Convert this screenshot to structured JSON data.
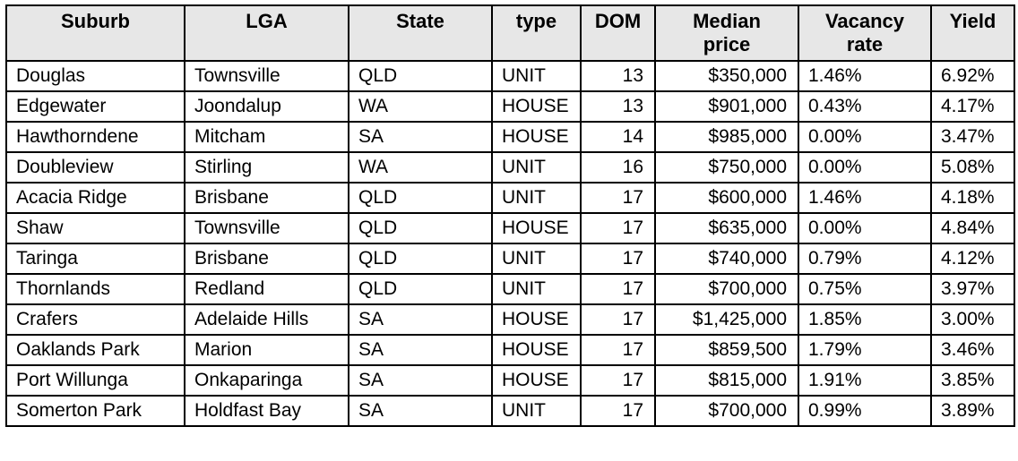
{
  "table": {
    "columns": [
      {
        "id": "suburb",
        "label": "Suburb",
        "align": "left"
      },
      {
        "id": "lga",
        "label": "LGA",
        "align": "left"
      },
      {
        "id": "state",
        "label": "State",
        "align": "left"
      },
      {
        "id": "type",
        "label": "type",
        "align": "left"
      },
      {
        "id": "dom",
        "label": "DOM",
        "align": "right"
      },
      {
        "id": "median_price",
        "label": "Median\nprice",
        "align": "right"
      },
      {
        "id": "vacancy_rate",
        "label": "Vacancy\nrate",
        "align": "left"
      },
      {
        "id": "yield",
        "label": "Yield",
        "align": "left"
      }
    ],
    "rows": [
      [
        "Douglas",
        "Townsville",
        "QLD",
        "UNIT",
        "13",
        "$350,000",
        "1.46%",
        "6.92%"
      ],
      [
        "Edgewater",
        "Joondalup",
        "WA",
        "HOUSE",
        "13",
        "$901,000",
        "0.43%",
        "4.17%"
      ],
      [
        "Hawthorndene",
        "Mitcham",
        "SA",
        "HOUSE",
        "14",
        "$985,000",
        "0.00%",
        "3.47%"
      ],
      [
        "Doubleview",
        "Stirling",
        "WA",
        "UNIT",
        "16",
        "$750,000",
        "0.00%",
        "5.08%"
      ],
      [
        "Acacia Ridge",
        "Brisbane",
        "QLD",
        "UNIT",
        "17",
        "$600,000",
        "1.46%",
        "4.18%"
      ],
      [
        "Shaw",
        "Townsville",
        "QLD",
        "HOUSE",
        "17",
        "$635,000",
        "0.00%",
        "4.84%"
      ],
      [
        "Taringa",
        "Brisbane",
        "QLD",
        "UNIT",
        "17",
        "$740,000",
        "0.79%",
        "4.12%"
      ],
      [
        "Thornlands",
        "Redland",
        "QLD",
        "UNIT",
        "17",
        "$700,000",
        "0.75%",
        "3.97%"
      ],
      [
        "Crafers",
        "Adelaide Hills",
        "SA",
        "HOUSE",
        "17",
        "$1,425,000",
        "1.85%",
        "3.00%"
      ],
      [
        "Oaklands Park",
        "Marion",
        "SA",
        "HOUSE",
        "17",
        "$859,500",
        "1.79%",
        "3.46%"
      ],
      [
        "Port Willunga",
        "Onkaparinga",
        "SA",
        "HOUSE",
        "17",
        "$815,000",
        "1.91%",
        "3.85%"
      ],
      [
        "Somerton Park",
        "Holdfast Bay",
        "SA",
        "UNIT",
        "17",
        "$700,000",
        "0.99%",
        "3.89%"
      ]
    ]
  },
  "colors": {
    "header_bg": "#e7e7e7",
    "border": "#000000",
    "text": "#000000"
  }
}
